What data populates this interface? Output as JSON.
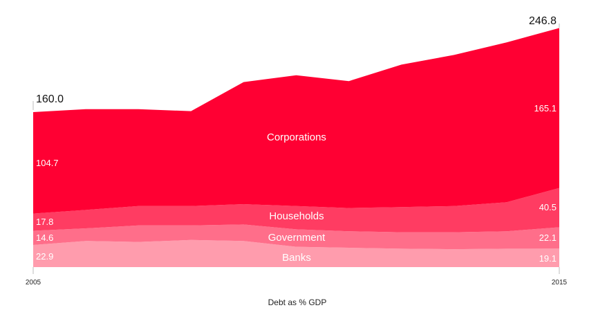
{
  "chart_data": {
    "type": "area",
    "stacked": true,
    "x": [
      2005,
      2006,
      2007,
      2008,
      2009,
      2010,
      2011,
      2012,
      2013,
      2014,
      2015
    ],
    "xlabel": "Debt as % GDP",
    "x_ticks": [
      "2005",
      "2015"
    ],
    "ylim": [
      0,
      250
    ],
    "grid": false,
    "legend": "none",
    "series": [
      {
        "name": "Banks",
        "color": "#ff9cad",
        "values": [
          22.9,
          27.0,
          26.0,
          28.0,
          27.0,
          21.0,
          20.0,
          19.0,
          18.5,
          19.0,
          19.1
        ]
      },
      {
        "name": "Government",
        "color": "#ff6e8a",
        "values": [
          14.6,
          13.0,
          17.0,
          15.0,
          17.0,
          18.0,
          17.0,
          17.0,
          17.5,
          18.0,
          22.1
        ]
      },
      {
        "name": "Households",
        "color": "#ff3c62",
        "values": [
          17.8,
          19.0,
          20.0,
          20.0,
          21.0,
          24.0,
          24.0,
          26.0,
          27.0,
          30.0,
          40.5
        ]
      },
      {
        "name": "Corporations",
        "color": "#ff0033",
        "values": [
          104.7,
          104.0,
          100.0,
          98.0,
          126.0,
          135.0,
          131.0,
          147.0,
          156.0,
          165.0,
          165.1
        ]
      }
    ],
    "totals": {
      "start": "160.0",
      "end": "246.8"
    },
    "start_labels": [
      "22.9",
      "14.6",
      "17.8",
      "104.7"
    ],
    "end_labels": [
      "19.1",
      "22.1",
      "40.5",
      "165.1"
    ],
    "series_labels": [
      "Banks",
      "Government",
      "Households",
      "Corporations"
    ]
  }
}
